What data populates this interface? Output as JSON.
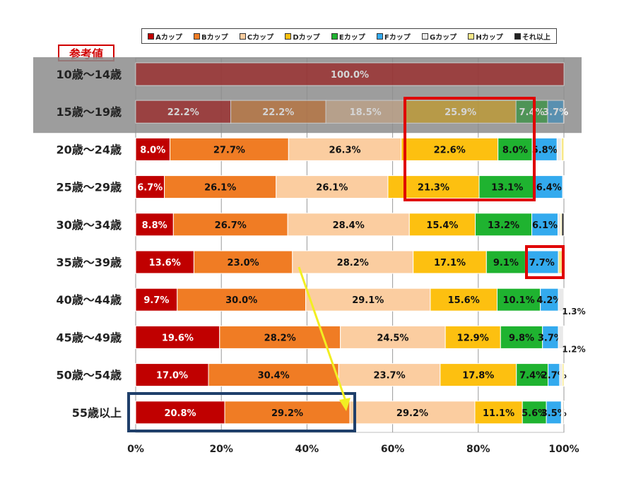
{
  "reference_label": "参考値",
  "legend": [
    {
      "label": "Aカップ",
      "color": "#c00000"
    },
    {
      "label": "Bカップ",
      "color": "#f07c24"
    },
    {
      "label": "Cカップ",
      "color": "#fbcda0"
    },
    {
      "label": "Dカップ",
      "color": "#fdc010"
    },
    {
      "label": "Eカップ",
      "color": "#1fb330"
    },
    {
      "label": "Fカップ",
      "color": "#33aaee"
    },
    {
      "label": "Gカップ",
      "color": "#e9e9e9"
    },
    {
      "label": "Hカップ",
      "color": "#f7e889"
    },
    {
      "label": "それ以上",
      "color": "#222222"
    }
  ],
  "chart_data": {
    "type": "bar",
    "orientation": "horizontal-stacked-100",
    "categories": [
      "10歳～14歳",
      "15歳～19歳",
      "20歳～24歳",
      "25歳～29歳",
      "30歳～34歳",
      "35歳～39歳",
      "40歳～44歳",
      "45歳～49歳",
      "50歳～54歳",
      "55歳以上"
    ],
    "series": [
      {
        "name": "Aカップ",
        "values": [
          100.0,
          22.2,
          8.0,
          6.7,
          8.8,
          13.6,
          9.7,
          19.6,
          17.0,
          20.8
        ]
      },
      {
        "name": "Bカップ",
        "values": [
          0,
          22.2,
          27.7,
          26.1,
          26.7,
          23.0,
          30.0,
          28.2,
          30.4,
          29.2
        ]
      },
      {
        "name": "Cカップ",
        "values": [
          0,
          18.5,
          26.3,
          26.1,
          28.4,
          28.2,
          29.1,
          24.5,
          23.7,
          29.2
        ]
      },
      {
        "name": "Dカップ",
        "values": [
          0,
          25.9,
          22.6,
          21.3,
          15.4,
          17.1,
          15.6,
          12.9,
          17.8,
          11.1
        ]
      },
      {
        "name": "Eカップ",
        "values": [
          0,
          7.4,
          8.0,
          13.1,
          13.2,
          9.1,
          10.1,
          9.8,
          7.4,
          5.6
        ]
      },
      {
        "name": "Fカップ",
        "values": [
          0,
          3.7,
          5.8,
          6.4,
          6.1,
          7.7,
          4.2,
          3.7,
          2.7,
          3.5
        ]
      },
      {
        "name": "Gカップ",
        "values": [
          0,
          0,
          1.0,
          0.3,
          0.6,
          0,
          1.3,
          1.2,
          0.6,
          0.2
        ]
      },
      {
        "name": "Hカップ",
        "values": [
          0,
          0,
          0.6,
          0,
          0.3,
          1.3,
          0,
          0.1,
          0.4,
          0.2
        ]
      },
      {
        "name": "それ以上",
        "values": [
          0,
          0.1,
          0,
          0,
          0.5,
          0,
          0,
          0,
          0,
          0.2
        ]
      }
    ],
    "shown_labels": [
      [
        "100.0%",
        "",
        "",
        "",
        "",
        "",
        "",
        "",
        ""
      ],
      [
        "22.2%",
        "22.2%",
        "18.5%",
        "25.9%",
        "7.4%",
        "3.7%",
        "",
        "",
        ""
      ],
      [
        "8.0%",
        "27.7%",
        "26.3%",
        "22.6%",
        "8.0%",
        "5.8%",
        "",
        "",
        ""
      ],
      [
        "6.7%",
        "26.1%",
        "26.1%",
        "21.3%",
        "13.1%",
        "6.4%",
        "",
        "",
        ""
      ],
      [
        "8.8%",
        "26.7%",
        "28.4%",
        "15.4%",
        "13.2%",
        "6.1%",
        "",
        "",
        ""
      ],
      [
        "13.6%",
        "23.0%",
        "28.2%",
        "17.1%",
        "9.1%",
        "7.7%",
        "",
        "",
        ""
      ],
      [
        "9.7%",
        "30.0%",
        "29.1%",
        "15.6%",
        "10.1%",
        "4.2%",
        "",
        "",
        ""
      ],
      [
        "19.6%",
        "28.2%",
        "24.5%",
        "12.9%",
        "9.8%",
        "3.7%",
        "",
        "",
        ""
      ],
      [
        "17.0%",
        "30.4%",
        "23.7%",
        "17.8%",
        "7.4%",
        "2.7%",
        "",
        "",
        ""
      ],
      [
        "20.8%",
        "29.2%",
        "29.2%",
        "11.1%",
        "5.6%",
        "3.5%",
        "",
        "",
        ""
      ]
    ],
    "outside_annotations": [
      {
        "row": 6,
        "text": "1.3%"
      },
      {
        "row": 7,
        "text": "1.2%"
      }
    ],
    "xaxis_ticks": [
      "0%",
      "20%",
      "40%",
      "60%",
      "80%",
      "100%"
    ],
    "xlim": [
      0,
      100
    ],
    "grid": true,
    "reference_rows": [
      0,
      1
    ]
  }
}
